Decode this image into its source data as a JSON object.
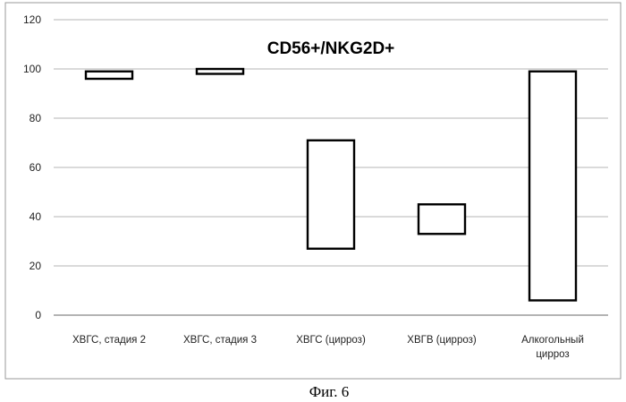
{
  "chart_data": {
    "type": "floating-bar",
    "title": "CD56+/NKG2D+",
    "xlabel": "",
    "ylabel": "",
    "ylim": [
      0,
      120
    ],
    "yticks": [
      0,
      20,
      40,
      60,
      80,
      100,
      120
    ],
    "grid": true,
    "legend": "none",
    "categories": [
      [
        "ХВГС, стадия 2"
      ],
      [
        "ХВГС, стадия 3"
      ],
      [
        "ХВГС (цирроз)"
      ],
      [
        "ХВГВ (цирроз)"
      ],
      [
        "Алкогольный",
        "цирроз"
      ]
    ],
    "ranges": [
      [
        96,
        99
      ],
      [
        98,
        100
      ],
      [
        27,
        71
      ],
      [
        33,
        45
      ],
      [
        6,
        99
      ]
    ]
  },
  "figure_caption": "Фиг. 6"
}
